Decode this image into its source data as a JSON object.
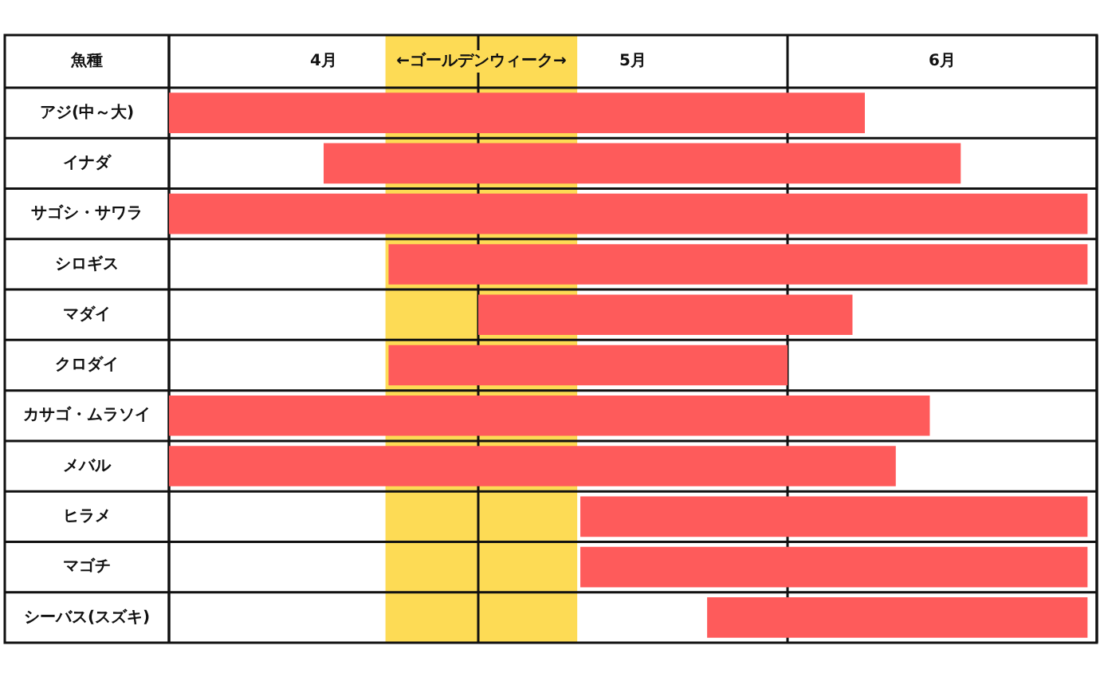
{
  "chart_data": {
    "type": "bar",
    "orientation": "horizontal",
    "ylabel": "魚種",
    "categories": [
      "アジ(中～大)",
      "イナダ",
      "サゴシ・サワラ",
      "シロギス",
      "マダイ",
      "クロダイ",
      "カサゴ・ムラソイ",
      "メバル",
      "ヒラメ",
      "マゴチ",
      "シーバス(スズキ)"
    ],
    "base": [
      4.0,
      4.5,
      4.0,
      4.71,
      5.0,
      4.71,
      4.0,
      4.0,
      5.33,
      5.33,
      5.74
    ],
    "values": [
      2.25,
      2.06,
      2.97,
      2.26,
      1.21,
      1.29,
      2.46,
      2.35,
      1.64,
      1.64,
      1.23
    ],
    "color": "#fe5b5b",
    "xlim": [
      4,
      7
    ],
    "xticks": [
      {
        "value": 4,
        "label": null
      },
      {
        "value": 4.5,
        "label": "4月"
      },
      {
        "value": 5,
        "label": null
      },
      {
        "value": 5.5,
        "label": "5月"
      },
      {
        "value": 6,
        "label": null
      },
      {
        "value": 6.5,
        "label": "6月"
      },
      {
        "value": 7,
        "label": null
      }
    ],
    "grid": true,
    "bands": [
      {
        "axis": "x",
        "from": 4.7,
        "to": 5.32,
        "label": "←ゴールデンウィーク→",
        "color": "#fddb55"
      }
    ]
  }
}
